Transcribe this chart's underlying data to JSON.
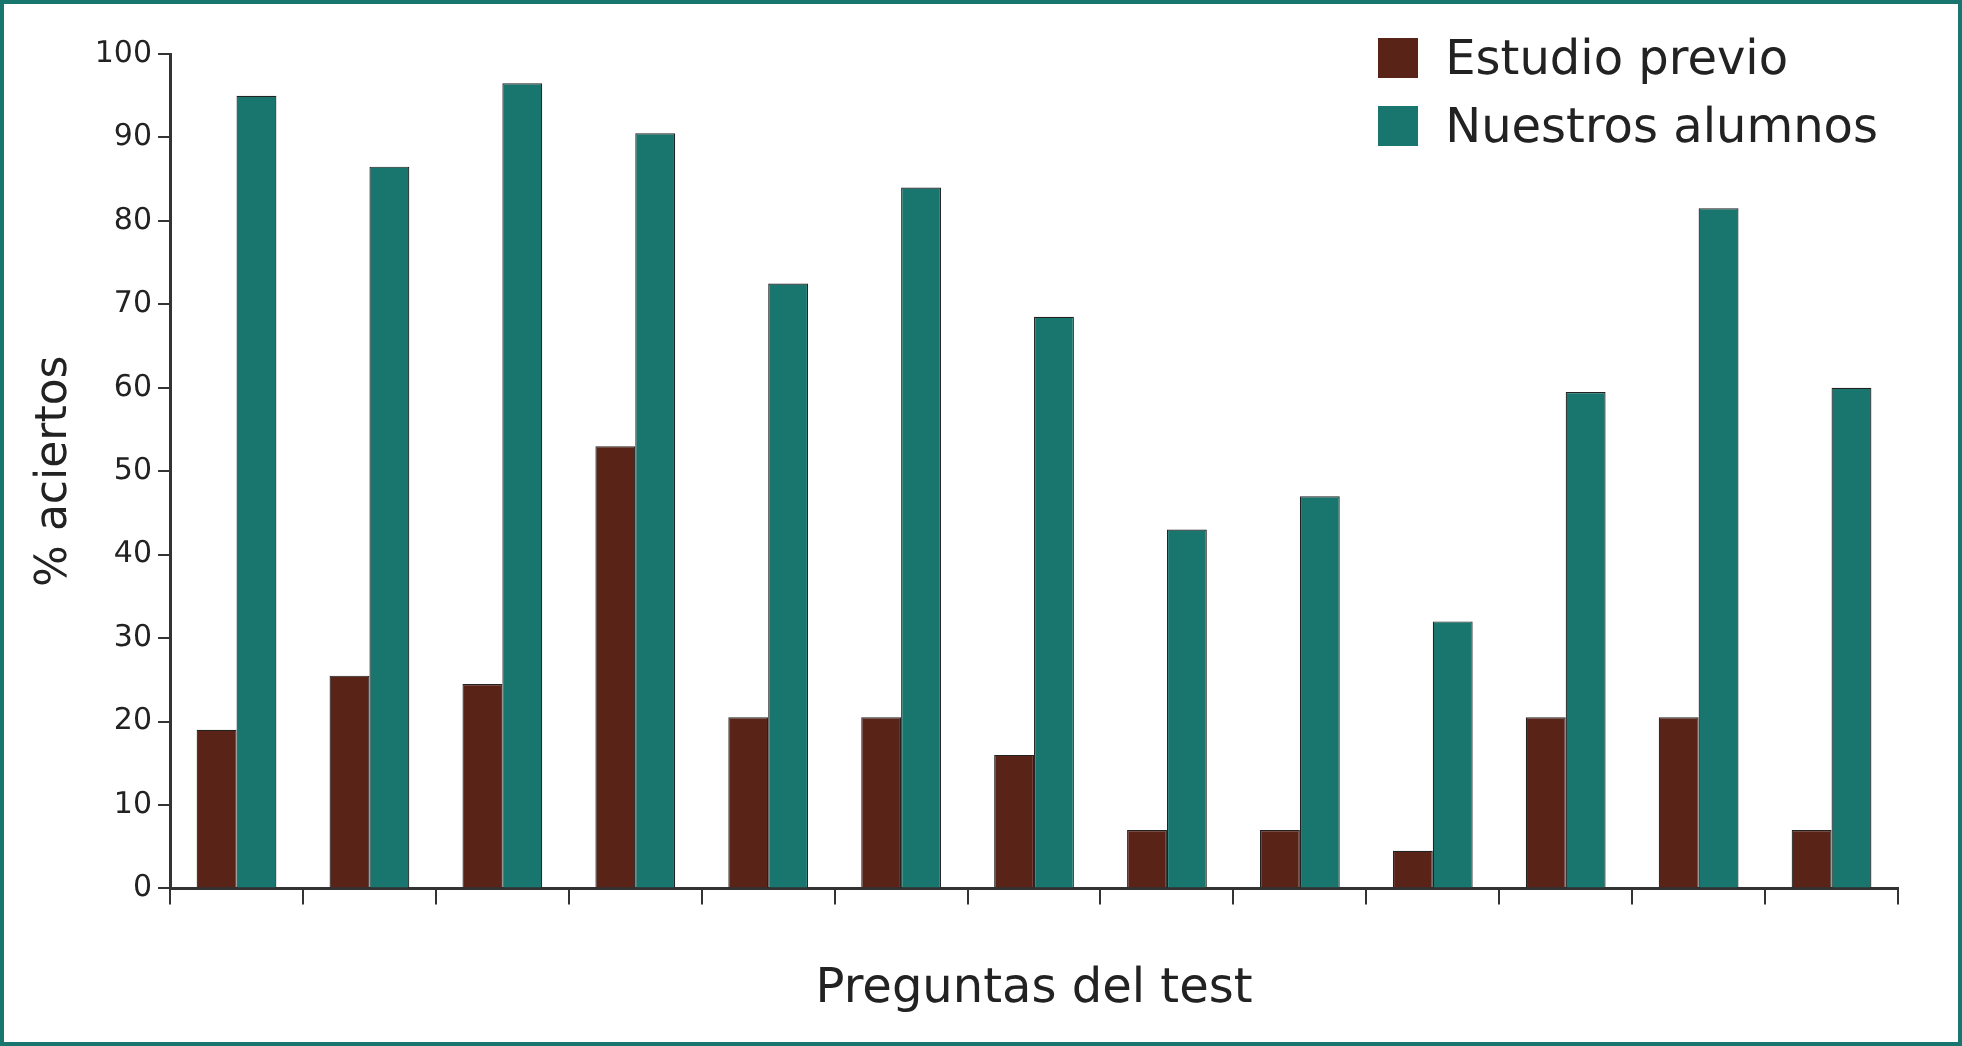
{
  "chart_data": {
    "type": "bar",
    "xlabel": "Preguntas del test",
    "ylabel": "% aciertos",
    "categories": [
      null,
      null,
      null,
      null,
      null,
      null,
      null,
      null,
      null,
      null,
      null,
      null,
      null
    ],
    "series": [
      {
        "name": "Estudio previo",
        "color": "#5a2318",
        "values": [
          19,
          25.5,
          24.5,
          53,
          20.5,
          20.5,
          16,
          7,
          7,
          4.5,
          20.5,
          20.5,
          7
        ]
      },
      {
        "name": "Nuestros alumnos",
        "color": "#18766f",
        "values": [
          95,
          86.5,
          96.5,
          90.5,
          72.5,
          84,
          68.5,
          43,
          47,
          32,
          59.5,
          81.5,
          60
        ]
      }
    ],
    "ylim": [
      0,
      100
    ],
    "yticks": [
      0,
      10,
      20,
      30,
      40,
      50,
      60,
      70,
      80,
      90,
      100
    ],
    "grid": false,
    "legend": "top right"
  }
}
